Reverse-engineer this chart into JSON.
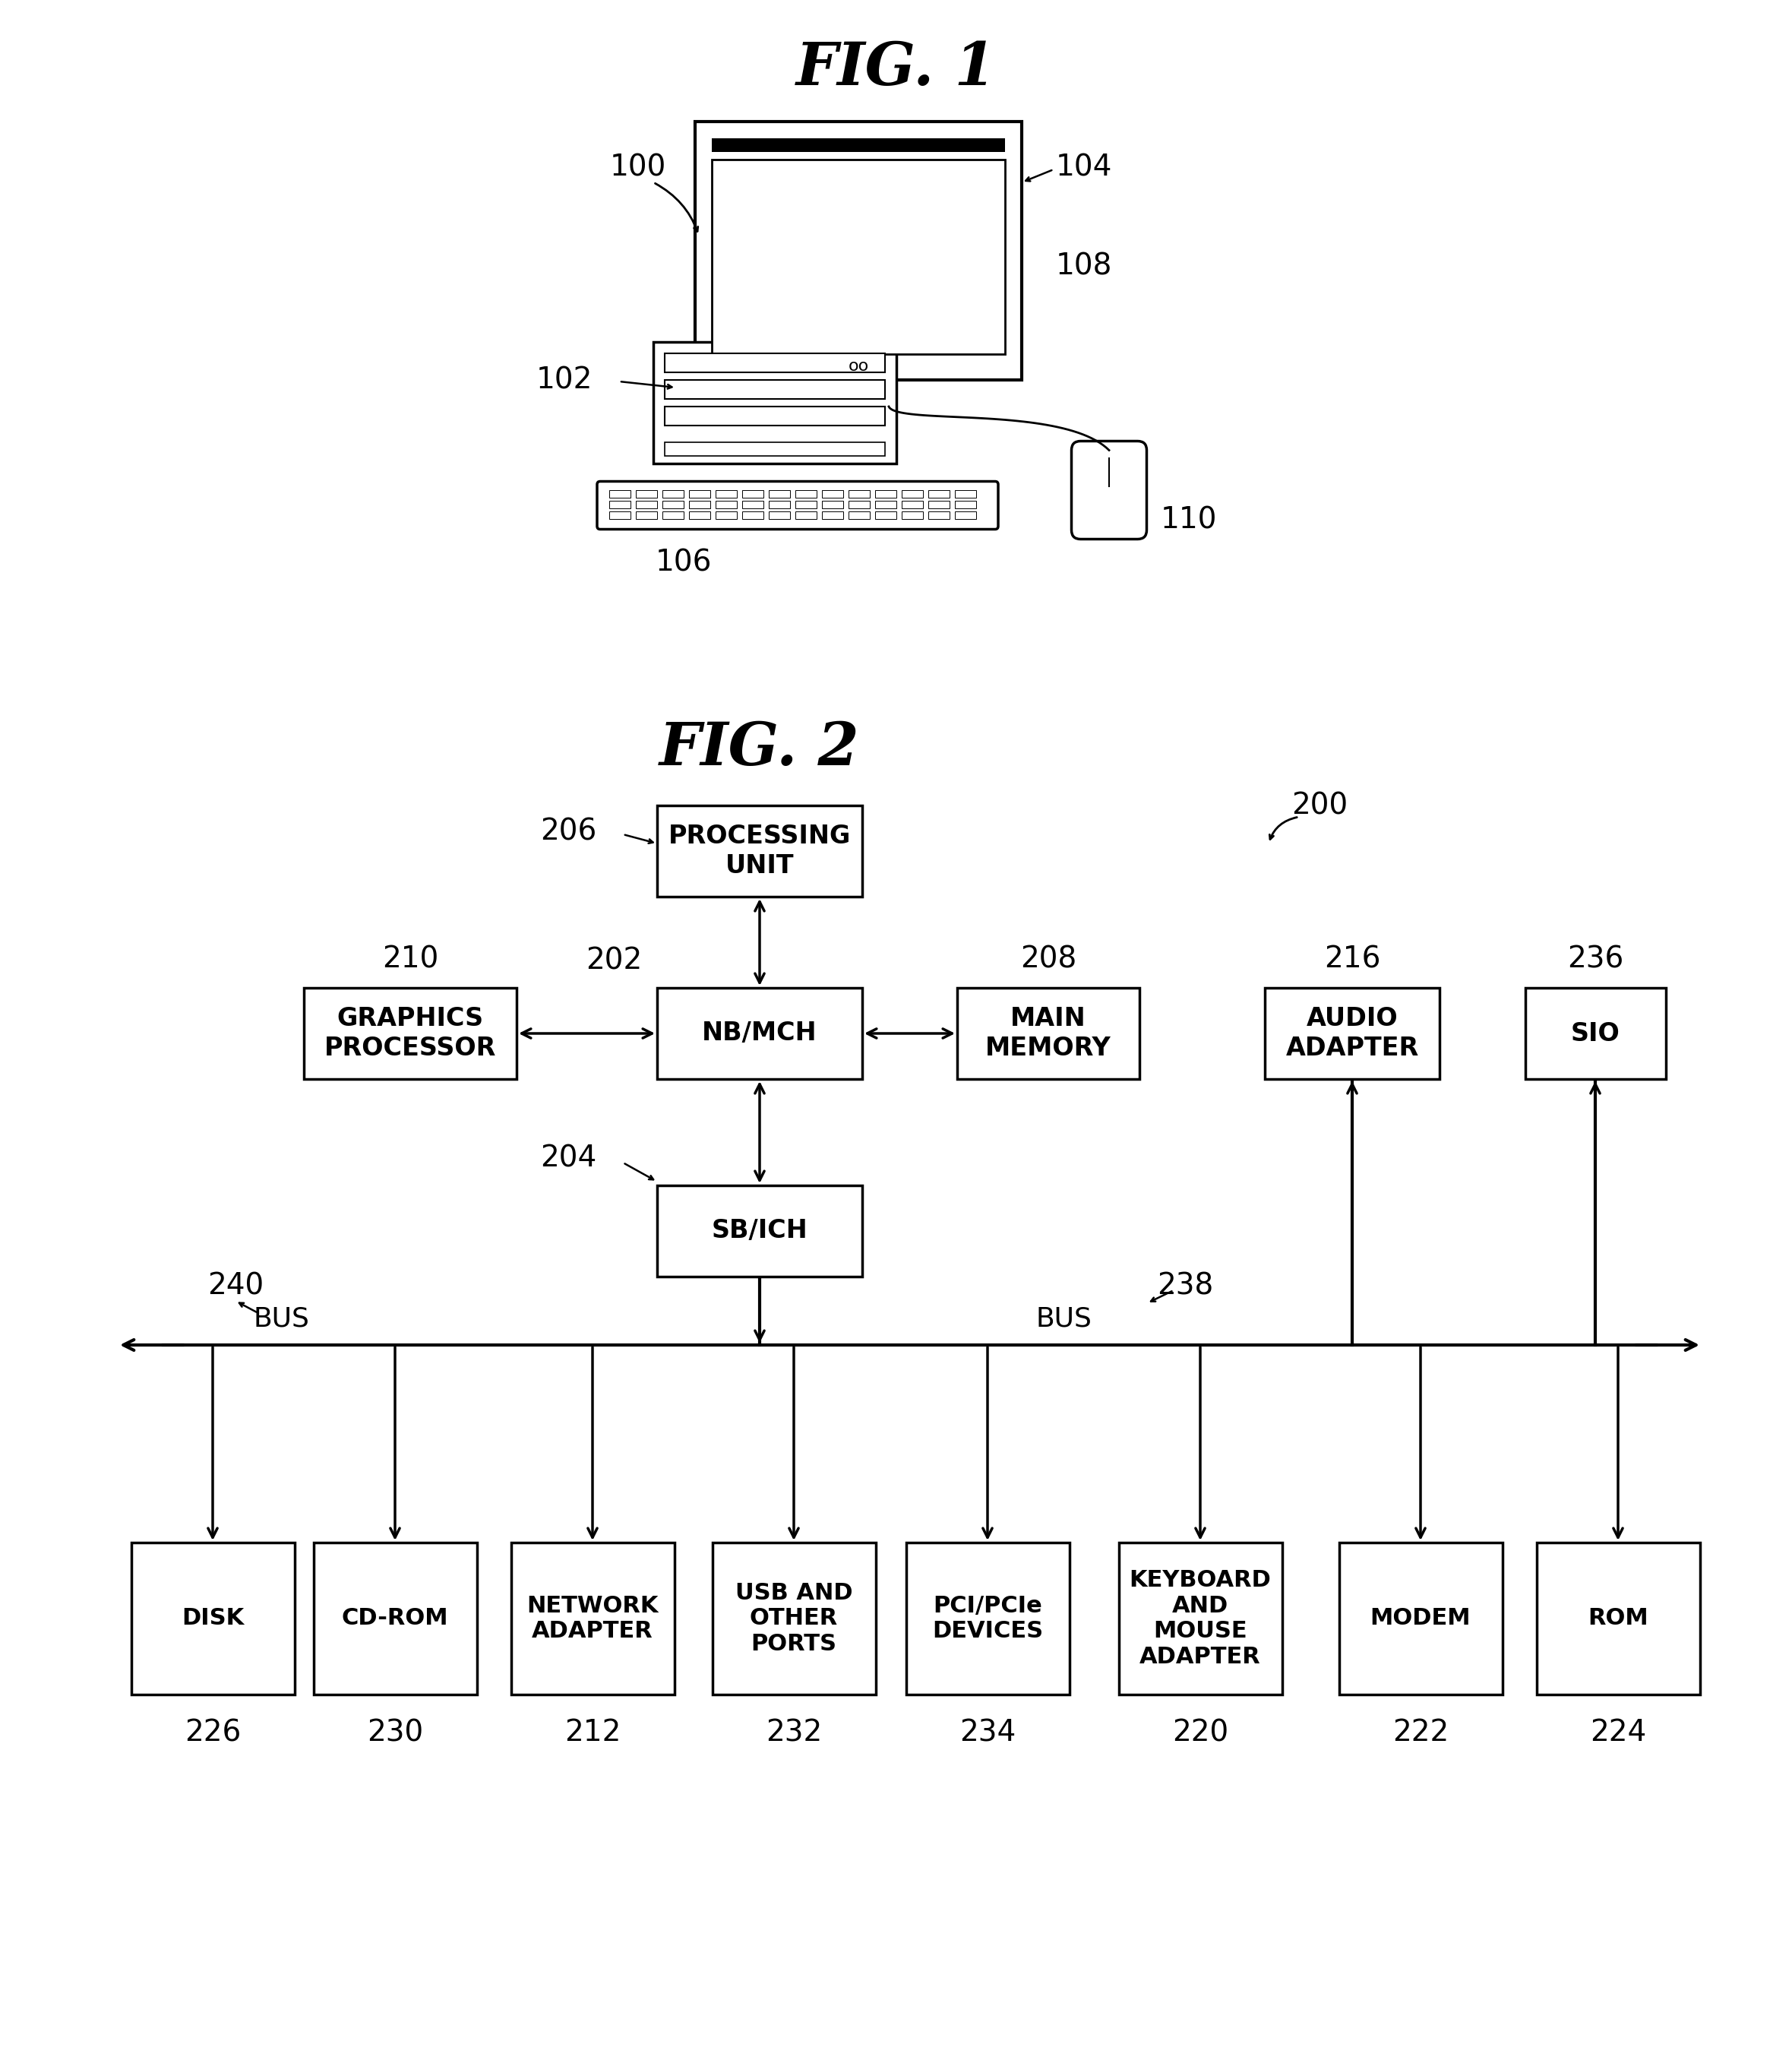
{
  "fig1_title": "FIG. 1",
  "fig2_title": "FIG. 2",
  "bg_color": "#ffffff",
  "box_color": "#ffffff",
  "box_edge_color": "#000000",
  "text_color": "#000000",
  "fig2_label": "200",
  "boxes": {
    "PROCESSING_UNIT": {
      "label": "PROCESSING\nUNIT",
      "ref": "206"
    },
    "NB_MCH": {
      "label": "NB/MCH",
      "ref": "202"
    },
    "MAIN_MEMORY": {
      "label": "MAIN\nMEMORY",
      "ref": "208"
    },
    "GRAPHICS_PROCESSOR": {
      "label": "GRAPHICS\nPROCESSOR",
      "ref": "210"
    },
    "SB_ICH": {
      "label": "SB/ICH",
      "ref": "204"
    },
    "AUDIO_ADAPTER": {
      "label": "AUDIO\nADAPTER",
      "ref": "216"
    },
    "SIO": {
      "label": "SIO",
      "ref": "236"
    },
    "DISK": {
      "label": "DISK",
      "ref": "226"
    },
    "CD_ROM": {
      "label": "CD-ROM",
      "ref": "230"
    },
    "NETWORK_ADAPTER": {
      "label": "NETWORK\nADAPTER",
      "ref": "212"
    },
    "USB_PORTS": {
      "label": "USB AND\nOTHER\nPORTS",
      "ref": "232"
    },
    "PCI_DEVICES": {
      "label": "PCI/PCIe\nDEVICES",
      "ref": "234"
    },
    "KB_MOUSE": {
      "label": "KEYBOARD\nAND\nMOUSE\nADAPTER",
      "ref": "220"
    },
    "MODEM": {
      "label": "MODEM",
      "ref": "222"
    },
    "ROM": {
      "label": "ROM",
      "ref": "224"
    }
  }
}
